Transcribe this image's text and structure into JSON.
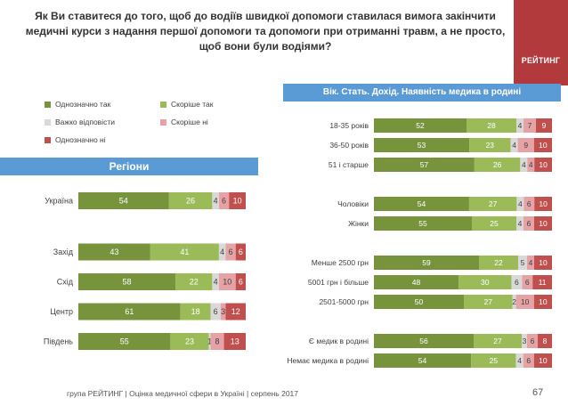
{
  "title": "Як Ви ставитеся до того, щоб до водіїв швидкої допомоги ставилася вимога закінчити медичні курси з надання першої допомоги та допомоги при отриманні травм, а не просто, щоб вони були водіями?",
  "logo": {
    "text": "РЕЙТИНГ",
    "color": "#b23a3d"
  },
  "legend": {
    "items": [
      {
        "label": "Однозначно так",
        "color": "#77933c"
      },
      {
        "label": "Скоріше так",
        "color": "#9bbb59"
      },
      {
        "label": "Важко відповісти",
        "color": "#d9d9d9"
      },
      {
        "label": "Скоріше ні",
        "color": "#e6a3a5"
      },
      {
        "label": "Однозначно ні",
        "color": "#c0504d"
      }
    ]
  },
  "banner_left": "Регіони",
  "banner_right": "Вік. Стать. Дохід. Наявність медика в родині",
  "footer": "група РЕЙТИНГ  |  Оцінка медичної сфери в Україні  |  серпень 2017",
  "page_number": "67",
  "chart_data": [
    {
      "type": "bar",
      "orientation": "horizontal",
      "stacked": true,
      "title": "Регіони",
      "series_names": [
        "Однозначно так",
        "Скоріше так",
        "Важко відповісти",
        "Скоріше ні",
        "Однозначно ні"
      ],
      "colors": [
        "#77933c",
        "#9bbb59",
        "#d9d9d9",
        "#e6a3a5",
        "#c0504d"
      ],
      "categories": [
        "Україна",
        "Захід",
        "Схід",
        "Центр",
        "Південь"
      ],
      "groups": [
        [
          0
        ],
        [
          1,
          2,
          3,
          4
        ]
      ],
      "values": [
        [
          54,
          26,
          4,
          6,
          10
        ],
        [
          43,
          41,
          4,
          6,
          6
        ],
        [
          58,
          22,
          4,
          10,
          6
        ],
        [
          61,
          18,
          6,
          3,
          12
        ],
        [
          55,
          23,
          1,
          8,
          13
        ]
      ],
      "xlim": [
        0,
        100
      ]
    },
    {
      "type": "bar",
      "orientation": "horizontal",
      "stacked": true,
      "title": "Вік. Стать. Дохід. Наявність медика в родині",
      "series_names": [
        "Однозначно так",
        "Скоріше так",
        "Важко відповісти",
        "Скоріше ні",
        "Однозначно ні"
      ],
      "colors": [
        "#77933c",
        "#9bbb59",
        "#d9d9d9",
        "#e6a3a5",
        "#c0504d"
      ],
      "categories": [
        "18-35 років",
        "36-50 років",
        "51 і старше",
        "Чоловіки",
        "Жінки",
        "Менше 2500 грн",
        "5001 грн і більше",
        "2501-5000 грн",
        "Є медик в родині",
        "Немає медика в родині"
      ],
      "groups": [
        [
          0,
          1,
          2
        ],
        [
          3,
          4
        ],
        [
          5,
          6,
          7
        ],
        [
          8,
          9
        ]
      ],
      "values": [
        [
          52,
          28,
          4,
          7,
          9
        ],
        [
          53,
          23,
          4,
          9,
          10
        ],
        [
          57,
          26,
          4,
          4,
          10
        ],
        [
          54,
          27,
          4,
          6,
          10
        ],
        [
          55,
          25,
          4,
          6,
          10
        ],
        [
          59,
          22,
          5,
          4,
          10
        ],
        [
          48,
          30,
          6,
          6,
          11
        ],
        [
          50,
          27,
          2,
          10,
          10
        ],
        [
          56,
          27,
          3,
          6,
          8
        ],
        [
          54,
          25,
          4,
          6,
          10
        ]
      ],
      "xlim": [
        0,
        100
      ]
    }
  ]
}
